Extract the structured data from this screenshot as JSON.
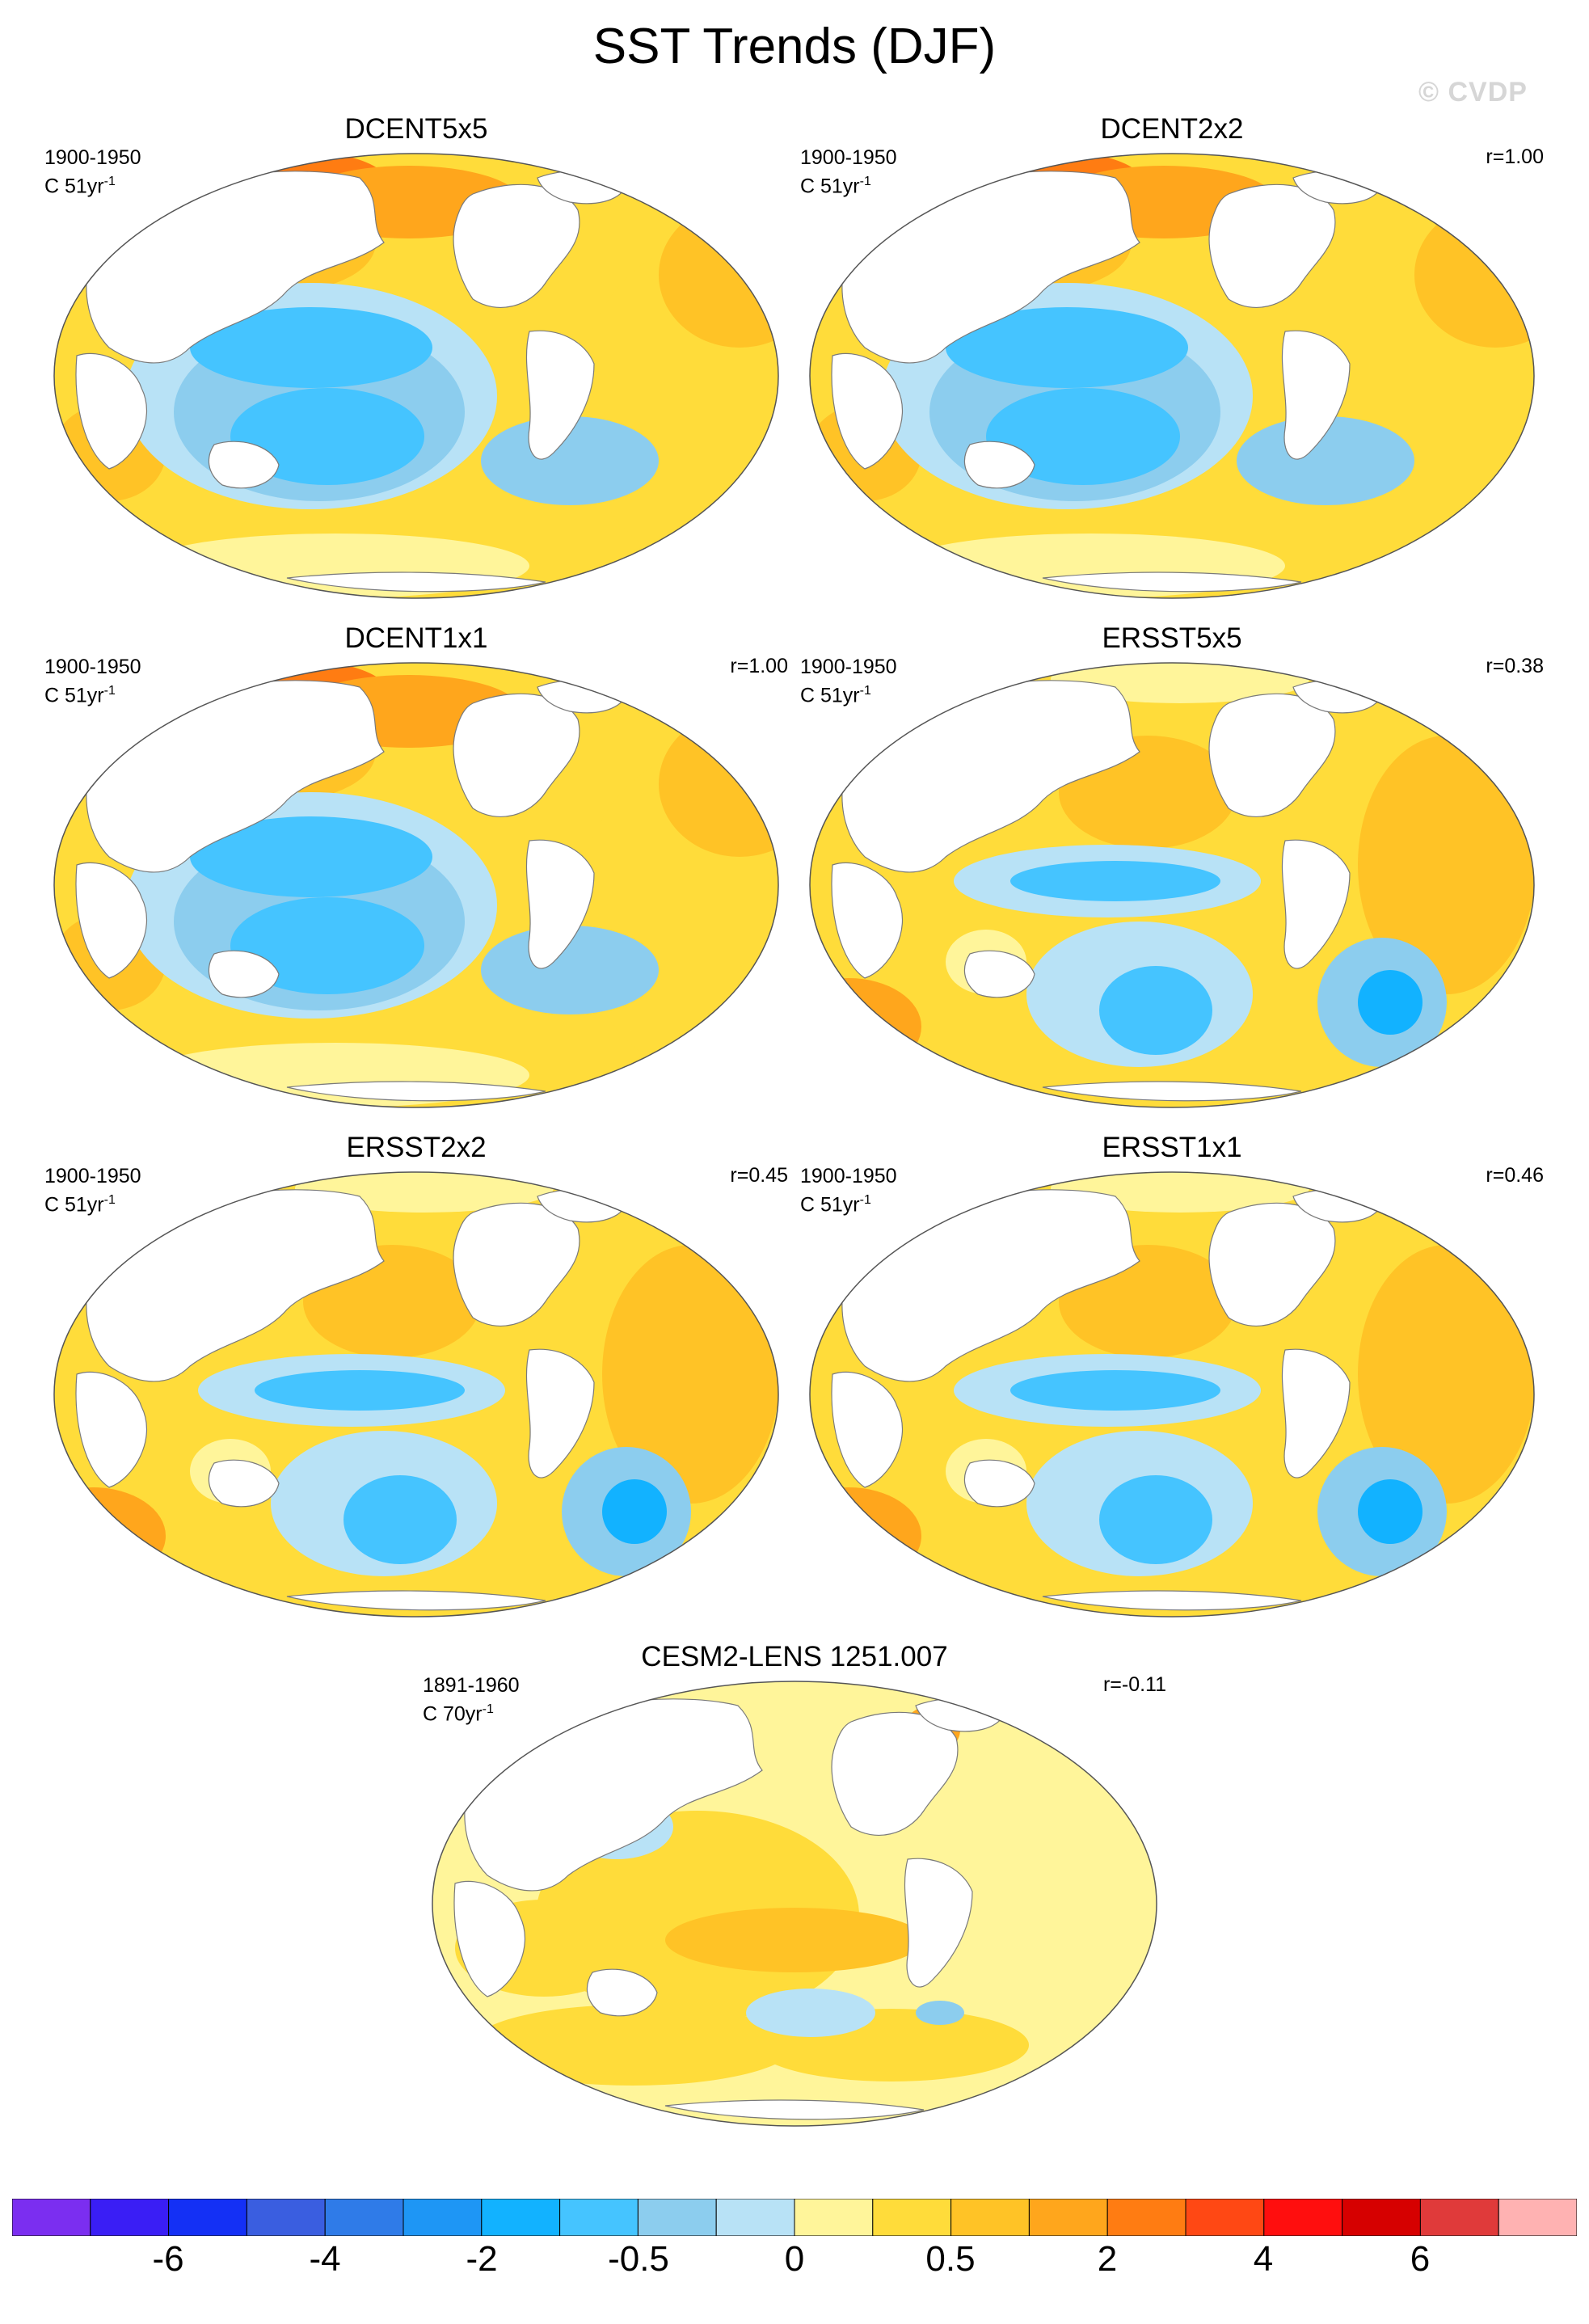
{
  "title": "SST Trends (DJF)",
  "watermark": "© CVDP",
  "units_prefix": "C 51yr",
  "colors": {
    "land": "#ffffff",
    "coast": "#7a7a7a",
    "levels": [
      "#7b2ef0",
      "#3a1ef5",
      "#1430f5",
      "#3a5ee0",
      "#2f7be8",
      "#1e96f5",
      "#12b2ff",
      "#45c4ff",
      "#8ccdee",
      "#b8e2f6",
      "#fff59a",
      "#ffdc3a",
      "#ffc326",
      "#ffa61c",
      "#ff7c12",
      "#ff4814",
      "#ff0e0e",
      "#d60000",
      "#e03a3a",
      "#ffb2b2"
    ]
  },
  "panels": [
    {
      "title": "DCENT5x5",
      "period": "1900-1950",
      "units": "C 51yr",
      "exp": "-1",
      "corr": "",
      "pattern": "dcent"
    },
    {
      "title": "DCENT2x2",
      "period": "1900-1950",
      "units": "C 51yr",
      "exp": "-1",
      "corr": "r=1.00",
      "pattern": "dcent"
    },
    {
      "title": "DCENT1x1",
      "period": "1900-1950",
      "units": "C 51yr",
      "exp": "-1",
      "corr": "r=1.00",
      "pattern": "dcent"
    },
    {
      "title": "ERSST5x5",
      "period": "1900-1950",
      "units": "C 51yr",
      "exp": "-1",
      "corr": "r=0.38",
      "pattern": "ersst"
    },
    {
      "title": "ERSST2x2",
      "period": "1900-1950",
      "units": "C 51yr",
      "exp": "-1",
      "corr": "r=0.45",
      "pattern": "ersst"
    },
    {
      "title": "ERSST1x1",
      "period": "1900-1950",
      "units": "C 51yr",
      "exp": "-1",
      "corr": "r=0.46",
      "pattern": "ersst"
    },
    {
      "title": "CESM2-LENS 1251.007",
      "period": "1891-1960",
      "units": "C 70yr",
      "exp": "-1",
      "corr": "r=-0.11",
      "pattern": "cesm"
    }
  ],
  "colorbar": {
    "labels": [
      "-6",
      "-4",
      "-2",
      "-0.5",
      "0",
      "0.5",
      "2",
      "4",
      "6"
    ]
  }
}
